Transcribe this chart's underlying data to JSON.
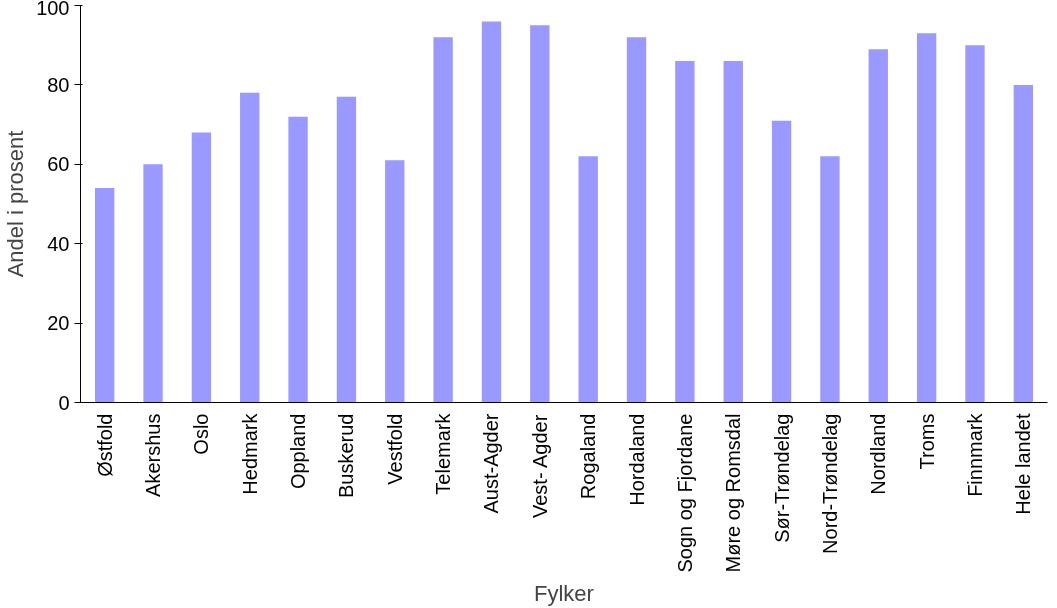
{
  "chart_data": {
    "type": "bar",
    "xlabel": "Fylker",
    "ylabel": "Andel i prosent",
    "categories": [
      "Østfold",
      "Akershus",
      "Oslo",
      "Hedmark",
      "Oppland",
      "Buskerud",
      "Vestfold",
      "Telemark",
      "Aust-Agder",
      "Vest- Agder",
      "Rogaland",
      "Hordaland",
      "Sogn og Fjordane",
      "Møre og Romsdal",
      "Sør-Trøndelag",
      "Nord-Trøndelag",
      "Nordland",
      "Troms",
      "Finnmark",
      "Hele landet"
    ],
    "values": [
      54,
      60,
      68,
      78,
      72,
      77,
      61,
      92,
      96,
      95,
      62,
      92,
      86,
      86,
      71,
      62,
      89,
      93,
      90,
      80
    ],
    "color": "#9999ff",
    "ylim": [
      0,
      100
    ],
    "yticks": [
      0,
      20,
      40,
      60,
      80,
      100
    ],
    "grid": false
  }
}
